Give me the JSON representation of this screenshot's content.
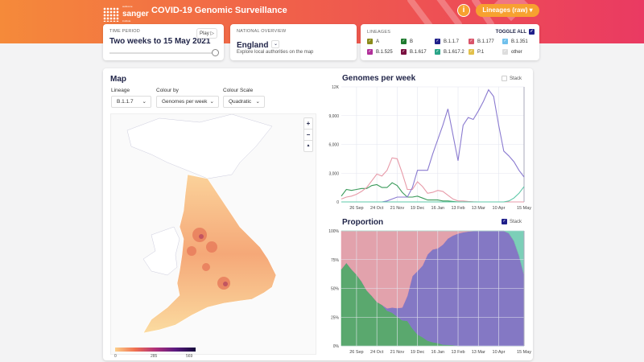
{
  "header": {
    "logo_text": "sanger",
    "logo_small_top": "wellcome",
    "logo_small_bottom": "institute",
    "title": "COVID-19 Genomic Surveillance",
    "info_icon": "info-icon",
    "lineages_button": "Lineages (raw)"
  },
  "time_period": {
    "label": "TIME PERIOD",
    "value": "Two weeks to 15 May 2021",
    "play_label": "Play ▷",
    "slider_fraction": 1.0
  },
  "national": {
    "label": "NATIONAL OVERVIEW",
    "value": "England",
    "hint": "Explore local authorities on the map"
  },
  "lineages": {
    "label": "LINEAGES",
    "toggle_all": "TOGGLE ALL",
    "items": [
      {
        "name": "A",
        "color": "#8a8a1a"
      },
      {
        "name": "B",
        "color": "#1e7a2e"
      },
      {
        "name": "B.1.1.7",
        "color": "#1f1f8a"
      },
      {
        "name": "B.1.177",
        "color": "#d9546a"
      },
      {
        "name": "B.1.351",
        "color": "#6fc0ec"
      },
      {
        "name": "B.1.525",
        "color": "#b1309a"
      },
      {
        "name": "B.1.617",
        "color": "#7a1040"
      },
      {
        "name": "B.1.617.2",
        "color": "#2aa588"
      },
      {
        "name": "P.1",
        "color": "#e2c04a"
      },
      {
        "name": "other",
        "color": "#dddddd"
      }
    ]
  },
  "map": {
    "title": "Map",
    "lineage_label": "Lineage",
    "lineage_value": "B.1.1.7",
    "colour_by_label": "Colour by",
    "colour_by_value": "Genomes per week",
    "scale_label": "Colour Scale",
    "scale_value": "Quadratic",
    "zoom_in": "+",
    "zoom_out": "−",
    "reset": "▲",
    "legend_ticks": [
      "0",
      "285",
      "569"
    ]
  },
  "chart_data": [
    {
      "type": "line",
      "title": "Genomes per week",
      "stack_label": "Stack",
      "stacked": false,
      "x_ticks": [
        {
          "i": 3,
          "label": "26 Sep"
        },
        {
          "i": 7,
          "label": "24 Oct"
        },
        {
          "i": 11,
          "label": "21 Nov"
        },
        {
          "i": 15,
          "label": "19 Dec"
        },
        {
          "i": 19,
          "label": "16 Jan"
        },
        {
          "i": 23,
          "label": "13 Feb"
        },
        {
          "i": 27,
          "label": "13 Mar"
        },
        {
          "i": 31,
          "label": "10 Apr"
        },
        {
          "i": 36,
          "label": "15 May"
        }
      ],
      "y_ticks": [
        "0",
        "3,000",
        "6,000",
        "9,000",
        "12K"
      ],
      "ylim": [
        0,
        12000
      ],
      "series": [
        {
          "name": "B",
          "color": "#3a9a5a",
          "values": [
            600,
            1300,
            1200,
            1300,
            1400,
            1400,
            1700,
            1800,
            1500,
            1500,
            2000,
            1700,
            1000,
            500,
            500,
            600,
            400,
            200,
            200,
            200,
            100,
            100,
            50,
            0,
            0,
            0,
            0,
            0,
            0,
            0,
            0,
            0,
            0,
            0,
            0,
            0,
            0
          ]
        },
        {
          "name": "B.1.177",
          "color": "#e79aa8",
          "values": [
            300,
            500,
            600,
            800,
            1100,
            1500,
            2200,
            2900,
            2700,
            3300,
            4600,
            4500,
            3000,
            1300,
            1300,
            2100,
            1600,
            900,
            1000,
            1200,
            1100,
            700,
            300,
            100,
            100,
            50,
            20,
            0,
            0,
            0,
            0,
            0,
            0,
            0,
            0,
            0,
            0
          ]
        },
        {
          "name": "B.1.1.7",
          "color": "#8a7ad0",
          "values": [
            0,
            0,
            0,
            0,
            0,
            0,
            0,
            0,
            0,
            100,
            300,
            500,
            500,
            500,
            1500,
            3300,
            3300,
            3300,
            5000,
            6500,
            8000,
            9700,
            7000,
            4300,
            8000,
            8800,
            8600,
            9500,
            10500,
            11700,
            11000,
            8000,
            5300,
            4800,
            4200,
            3300,
            2600
          ]
        },
        {
          "name": "B.1.617.2",
          "color": "#5ec8a8",
          "values": [
            0,
            0,
            0,
            0,
            0,
            0,
            0,
            0,
            0,
            0,
            0,
            0,
            0,
            0,
            0,
            0,
            0,
            0,
            0,
            0,
            0,
            0,
            0,
            0,
            0,
            0,
            0,
            0,
            0,
            0,
            0,
            0,
            0,
            100,
            400,
            900,
            1600
          ]
        }
      ]
    },
    {
      "type": "area",
      "title": "Proportion",
      "stack_label": "Stack",
      "stacked": true,
      "y_ticks": [
        "0%",
        "25%",
        "50%",
        "75%",
        "100%"
      ],
      "ylim": [
        0,
        100
      ],
      "derived_from": "Genomes per week"
    }
  ]
}
